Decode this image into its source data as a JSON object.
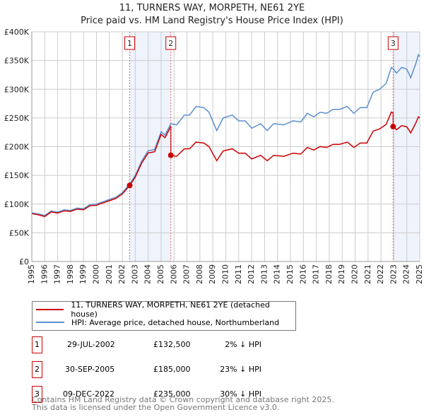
{
  "chart_data": {
    "type": "line",
    "title": "11, TURNERS WAY, MORPETH, NE61 2YE",
    "subtitle": "Price paid vs. HM Land Registry's House Price Index (HPI)",
    "xlim": [
      1995,
      2025
    ],
    "ylim": [
      0,
      400000
    ],
    "x_ticks": [
      "1995",
      "1996",
      "1997",
      "1998",
      "1999",
      "2000",
      "2001",
      "2002",
      "2003",
      "2004",
      "2005",
      "2006",
      "2007",
      "2008",
      "2009",
      "2010",
      "2011",
      "2012",
      "2013",
      "2014",
      "2015",
      "2016",
      "2017",
      "2018",
      "2019",
      "2020",
      "2021",
      "2022",
      "2023",
      "2024",
      "2025"
    ],
    "y_ticks": [
      {
        "v": 0,
        "label": "£0"
      },
      {
        "v": 50000,
        "label": "£50K"
      },
      {
        "v": 100000,
        "label": "£100K"
      },
      {
        "v": 150000,
        "label": "£150K"
      },
      {
        "v": 200000,
        "label": "£200K"
      },
      {
        "v": 250000,
        "label": "£250K"
      },
      {
        "v": 300000,
        "label": "£300K"
      },
      {
        "v": 350000,
        "label": "£350K"
      },
      {
        "v": 400000,
        "label": "£400K"
      }
    ],
    "grid": true,
    "colors": {
      "property": "#cc0000",
      "hpi": "#5b8fd0",
      "shade": "#eef3fc"
    },
    "hpi": {
      "name": "HPI: Average price, detached house, Northumberland",
      "x": [
        1995,
        1995.5,
        1996,
        1996.5,
        1997,
        1997.5,
        1998,
        1998.5,
        1999,
        1999.5,
        2000,
        2000.5,
        2001,
        2001.5,
        2002,
        2002.57,
        2003,
        2003.5,
        2004,
        2004.5,
        2005,
        2005.3,
        2005.75,
        2006.2,
        2006.8,
        2007.2,
        2007.7,
        2008.3,
        2008.7,
        2009.3,
        2009.8,
        2010.5,
        2011,
        2011.5,
        2012,
        2012.7,
        2013.2,
        2013.7,
        2014.5,
        2015.2,
        2015.8,
        2016.3,
        2016.8,
        2017.3,
        2017.8,
        2018.3,
        2018.8,
        2019.4,
        2019.9,
        2020.4,
        2020.9,
        2021.4,
        2021.9,
        2022.4,
        2022.8,
        2022.94,
        2023.2,
        2023.6,
        2024,
        2024.3,
        2024.7,
        2024.9,
        2025
      ],
      "y": [
        85000,
        83000,
        80000,
        88000,
        86000,
        90000,
        89000,
        93000,
        92000,
        99000,
        100000,
        104000,
        108000,
        112000,
        120000,
        135000,
        150000,
        175000,
        193000,
        195000,
        226000,
        220000,
        240000,
        238000,
        255000,
        255000,
        270000,
        268000,
        260000,
        228000,
        250000,
        255000,
        245000,
        245000,
        232000,
        240000,
        228000,
        240000,
        238000,
        245000,
        243000,
        258000,
        252000,
        260000,
        258000,
        265000,
        265000,
        270000,
        258000,
        268000,
        268000,
        295000,
        300000,
        310000,
        338000,
        336000,
        328000,
        338000,
        335000,
        320000,
        345000,
        360000,
        357000
      ]
    },
    "property": {
      "name": "11, TURNERS WAY, MORPETH, NE61 2YE (detached house)"
    },
    "sales": [
      {
        "n": "1",
        "x": 2002.57,
        "date": "29-JUL-2002",
        "price": 132500,
        "price_label": "£132,500",
        "hpi_diff": "2% ↓ HPI",
        "ratio": 0.98
      },
      {
        "n": "2",
        "x": 2005.75,
        "date": "30-SEP-2005",
        "price": 185000,
        "price_label": "£185,000",
        "hpi_diff": "23% ↓ HPI",
        "ratio": 0.77
      },
      {
        "n": "3",
        "x": 2022.94,
        "date": "09-DEC-2022",
        "price": 235000,
        "price_label": "£235,000",
        "hpi_diff": "30% ↓ HPI",
        "ratio": 0.7
      }
    ]
  },
  "footer": {
    "line1": "Contains HM Land Registry data © Crown copyright and database right 2025.",
    "line2": "This data is licensed under the Open Government Licence v3.0."
  }
}
